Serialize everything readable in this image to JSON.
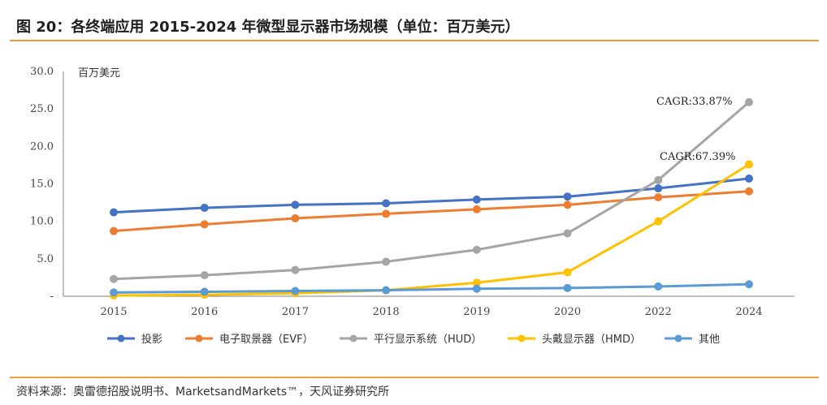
{
  "header": {
    "title": "图 20：各终端应用 2015-2024 年微型显示器市场规模（单位：百万美元）"
  },
  "footer": {
    "source": "资料来源：奥雷德招股说明书、MarketsandMarkets™，天风证券研究所"
  },
  "chart_data": {
    "type": "line",
    "title": "",
    "xlabel": "",
    "ylabel": "百万美元",
    "categories": [
      "2015",
      "2016",
      "2017",
      "2018",
      "2019",
      "2020",
      "2022",
      "2024"
    ],
    "yticks": [
      "30.0",
      "25.0",
      "20.0",
      "15.0",
      "10.0",
      "5.0",
      "-"
    ],
    "ylim": [
      0,
      30
    ],
    "grid": false,
    "legend_position": "bottom",
    "series": [
      {
        "name": "投影",
        "color": "#4472c4",
        "values": [
          11.2,
          11.8,
          12.2,
          12.4,
          12.9,
          13.3,
          14.4,
          15.7
        ]
      },
      {
        "name": "电子取景器（EVF）",
        "color": "#ed7d31",
        "values": [
          8.7,
          9.6,
          10.4,
          11.0,
          11.6,
          12.2,
          13.2,
          14.0
        ]
      },
      {
        "name": "平行显示系统（HUD）",
        "color": "#a5a5a5",
        "values": [
          2.3,
          2.8,
          3.5,
          4.6,
          6.2,
          8.4,
          15.5,
          25.9
        ]
      },
      {
        "name": "头戴显示器（HMD）",
        "color": "#ffc000",
        "values": [
          0.1,
          0.2,
          0.4,
          0.8,
          1.8,
          3.2,
          10.0,
          17.6
        ]
      },
      {
        "name": "其他",
        "color": "#5b9bd5",
        "values": [
          0.5,
          0.6,
          0.7,
          0.8,
          1.0,
          1.1,
          1.3,
          1.6
        ]
      }
    ],
    "annotations": [
      {
        "text": "CAGR:33.87%",
        "series": "平行显示系统（HUD）"
      },
      {
        "text": "CAGR:67.39%",
        "series": "头戴显示器（HMD）"
      }
    ]
  }
}
